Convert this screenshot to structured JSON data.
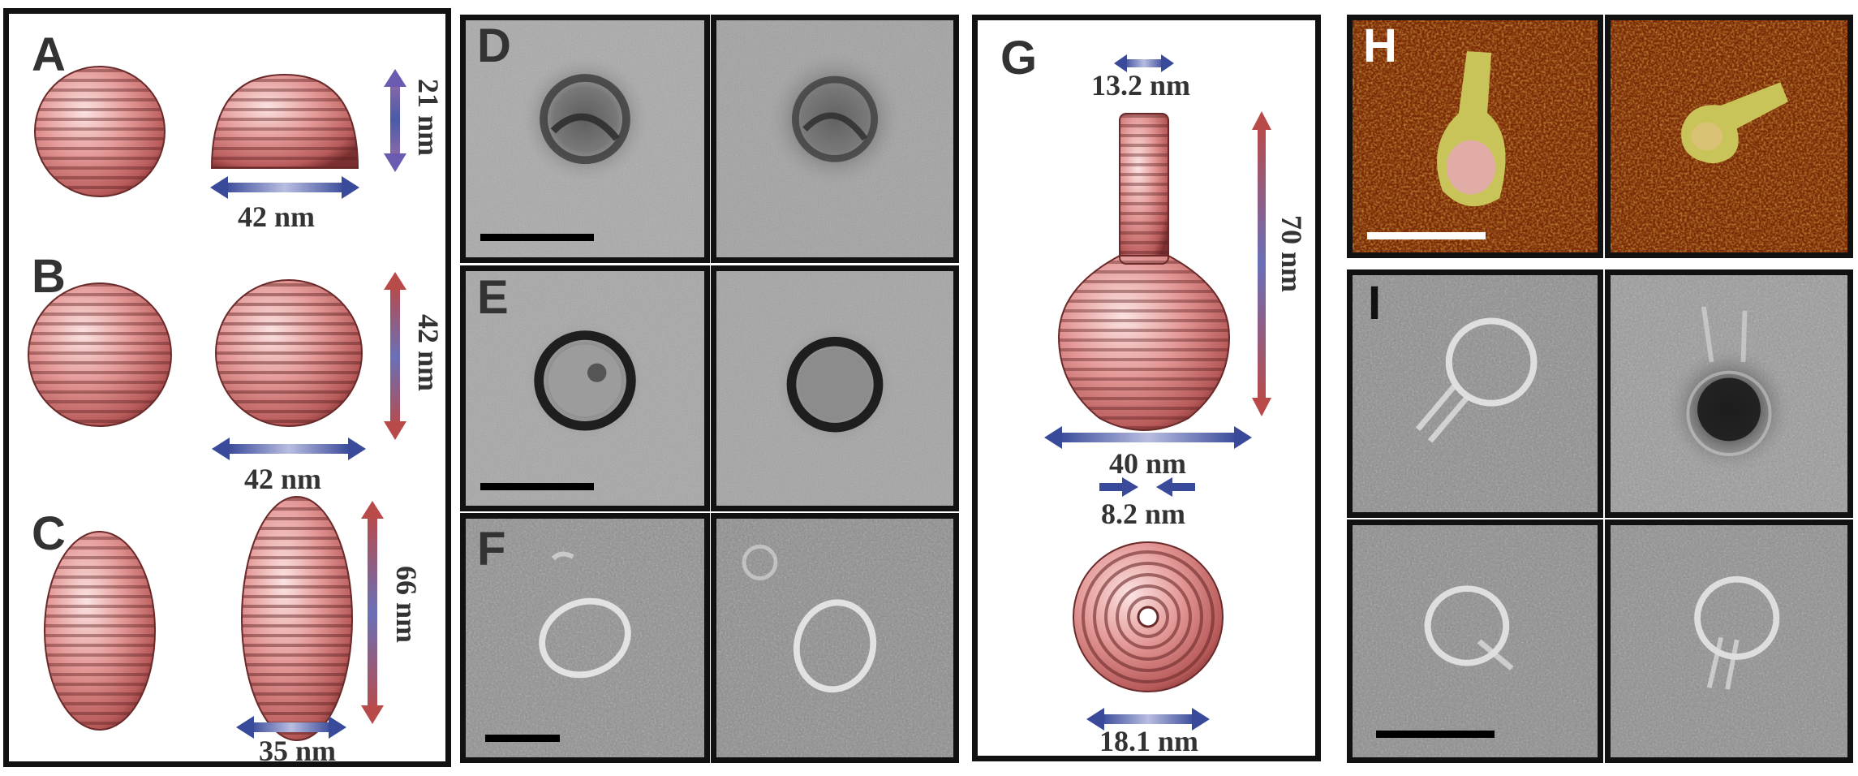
{
  "figure": {
    "panels": {
      "A": {
        "label": "A",
        "height": "21 nm",
        "width": "42 nm"
      },
      "B": {
        "label": "B",
        "height": "42 nm",
        "width": "42 nm"
      },
      "C": {
        "label": "C",
        "height": "66 nm",
        "width": "35 nm"
      },
      "D": {
        "label": "D"
      },
      "E": {
        "label": "E"
      },
      "F": {
        "label": "F"
      },
      "G": {
        "label": "G",
        "neck_width": "13.2 nm",
        "height": "70 nm",
        "body_width": "40 nm",
        "opening": "8.2 nm",
        "base_width": "18.1 nm"
      },
      "H": {
        "label": "H"
      },
      "I": {
        "label": "I"
      }
    },
    "colors": {
      "origami_surface": "#d98a88",
      "arrow_blue": "#4a5aa8",
      "arrow_red": "#b84a4a",
      "afm_background": "#7a2a05",
      "afm_object": "#c9c45a"
    }
  }
}
